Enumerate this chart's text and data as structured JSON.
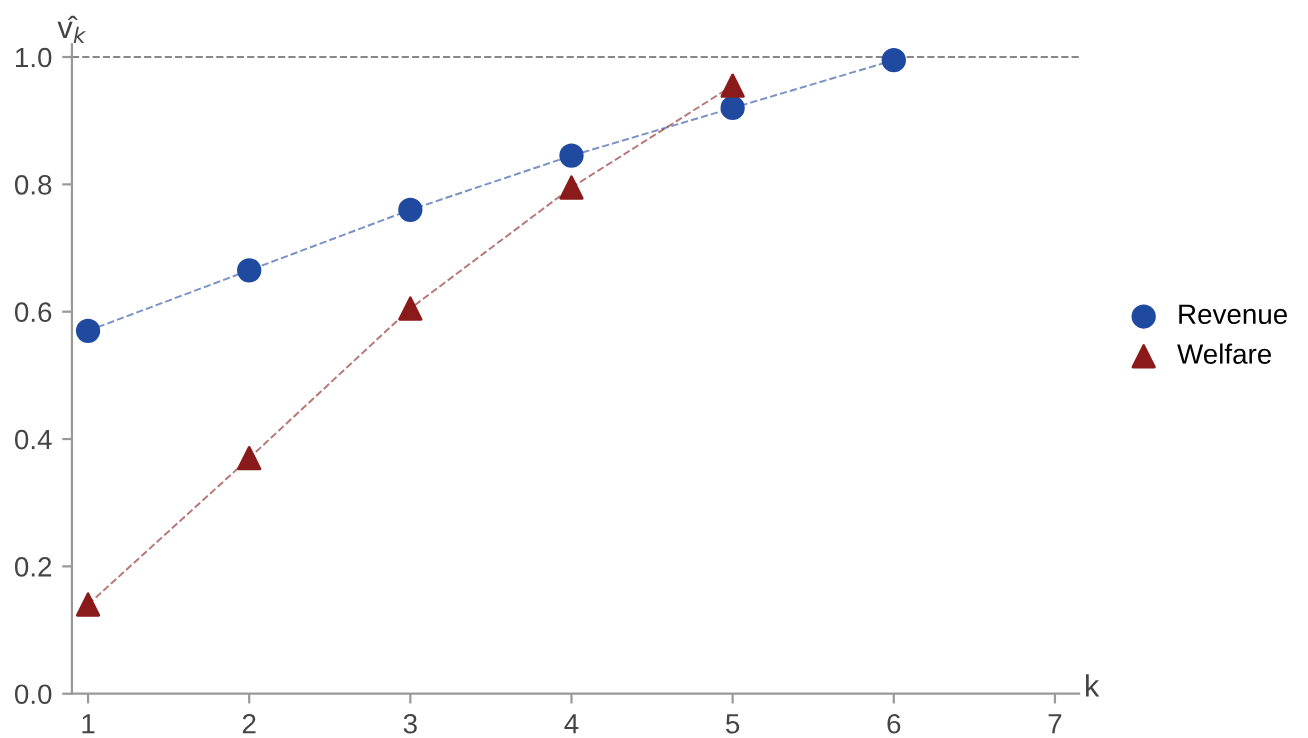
{
  "chart_data": {
    "type": "line",
    "xlabel": "k",
    "ylabel": "v̂$_{k}$",
    "x": [
      1,
      2,
      3,
      4,
      5,
      6
    ],
    "series": [
      {
        "name": "Revenue",
        "color": "#1f4aa0",
        "marker": "circle",
        "values": [
          0.57,
          0.665,
          0.76,
          0.845,
          0.92,
          0.995
        ]
      },
      {
        "name": "Welfare",
        "color": "#8b1a1a",
        "marker": "triangle",
        "values": [
          0.14,
          0.37,
          0.605,
          0.795,
          0.955,
          null
        ]
      }
    ],
    "xlim": [
      0.9,
      7.15
    ],
    "xticks": [
      1,
      2,
      3,
      4,
      5,
      6,
      7
    ],
    "ylim": [
      0,
      1.02
    ],
    "yticks": [
      {
        "value": 0,
        "label": "0.0"
      },
      0.2,
      0.4,
      0.6,
      0.8,
      {
        "value": 1,
        "label": "1.0"
      }
    ],
    "ref_lines": [
      {
        "axis": "y",
        "value": 1,
        "color": "#888888",
        "line_style": "dashed"
      }
    ],
    "line_style": "dashed",
    "grid": false,
    "legend": "right"
  }
}
